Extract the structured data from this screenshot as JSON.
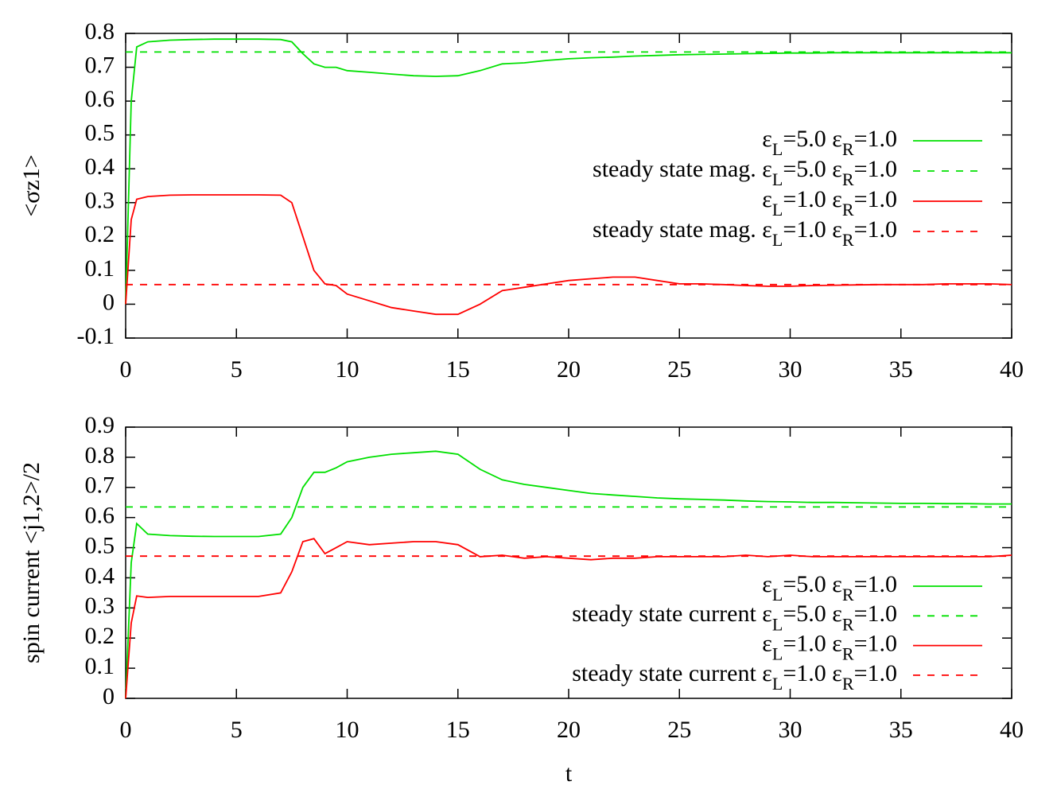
{
  "chart_data": [
    {
      "type": "line",
      "ylabel": "<σz1>",
      "x": [
        0,
        0.25,
        0.5,
        1,
        2,
        3,
        4,
        5,
        6,
        7,
        7.5,
        8,
        8.5,
        9,
        9.5,
        10,
        11,
        12,
        13,
        14,
        15,
        16,
        17,
        18,
        19,
        20,
        21,
        22,
        23,
        24,
        25,
        26,
        27,
        28,
        29,
        30,
        31,
        32,
        33,
        34,
        35,
        36,
        37,
        38,
        39,
        40
      ],
      "xlim": [
        0,
        40
      ],
      "xticks": [
        0,
        5,
        10,
        15,
        20,
        25,
        30,
        35,
        40
      ],
      "ylim": [
        -0.1,
        0.8
      ],
      "yticks": [
        -0.1,
        0,
        0.1,
        0.2,
        0.3,
        0.4,
        0.5,
        0.6,
        0.7,
        0.8
      ],
      "grid": false,
      "legend": "right",
      "series": [
        {
          "name": "εL=5.0 εR=1.0",
          "color": "#00e000",
          "dashed": false,
          "values": [
            0,
            0.6,
            0.76,
            0.775,
            0.78,
            0.782,
            0.783,
            0.783,
            0.783,
            0.782,
            0.775,
            0.74,
            0.71,
            0.7,
            0.7,
            0.69,
            0.685,
            0.68,
            0.675,
            0.673,
            0.675,
            0.69,
            0.71,
            0.713,
            0.72,
            0.725,
            0.728,
            0.73,
            0.733,
            0.735,
            0.737,
            0.738,
            0.739,
            0.74,
            0.741,
            0.742,
            0.742,
            0.743,
            0.743,
            0.743,
            0.743,
            0.743,
            0.743,
            0.743,
            0.743,
            0.743
          ]
        },
        {
          "name": "steady state mag. εL=5.0 εR=1.0",
          "color": "#00e000",
          "dashed": true,
          "x": [
            0,
            40
          ],
          "values": [
            0.745,
            0.745
          ]
        },
        {
          "name": "εL=1.0 εR=1.0",
          "color": "#ff0000",
          "dashed": false,
          "values": [
            0,
            0.25,
            0.31,
            0.318,
            0.322,
            0.323,
            0.323,
            0.323,
            0.323,
            0.322,
            0.3,
            0.2,
            0.1,
            0.06,
            0.055,
            0.03,
            0.01,
            -0.01,
            -0.02,
            -0.03,
            -0.03,
            0,
            0.04,
            0.05,
            0.06,
            0.07,
            0.075,
            0.08,
            0.08,
            0.07,
            0.06,
            0.06,
            0.058,
            0.055,
            0.053,
            0.053,
            0.055,
            0.056,
            0.057,
            0.058,
            0.058,
            0.058,
            0.06,
            0.06,
            0.06,
            0.058
          ]
        },
        {
          "name": "steady state mag. εL=1.0 εR=1.0",
          "color": "#ff0000",
          "dashed": true,
          "x": [
            0,
            40
          ],
          "values": [
            0.058,
            0.058
          ]
        }
      ]
    },
    {
      "type": "line",
      "ylabel": "spin current <j1,2>/2",
      "xlabel": "t",
      "x": [
        0,
        0.25,
        0.5,
        1,
        2,
        3,
        4,
        5,
        6,
        7,
        7.5,
        8,
        8.5,
        9,
        9.5,
        10,
        11,
        12,
        13,
        14,
        15,
        16,
        17,
        18,
        19,
        20,
        21,
        22,
        23,
        24,
        25,
        26,
        27,
        28,
        29,
        30,
        31,
        32,
        33,
        34,
        35,
        36,
        37,
        38,
        39,
        40
      ],
      "xlim": [
        0,
        40
      ],
      "xticks": [
        0,
        5,
        10,
        15,
        20,
        25,
        30,
        35,
        40
      ],
      "ylim": [
        0,
        0.9
      ],
      "yticks": [
        0,
        0.1,
        0.2,
        0.3,
        0.4,
        0.5,
        0.6,
        0.7,
        0.8,
        0.9
      ],
      "grid": false,
      "legend": "right",
      "series": [
        {
          "name": "εL=5.0 εR=1.0",
          "color": "#00e000",
          "dashed": false,
          "values": [
            0,
            0.45,
            0.58,
            0.545,
            0.54,
            0.538,
            0.537,
            0.537,
            0.537,
            0.545,
            0.6,
            0.7,
            0.75,
            0.75,
            0.765,
            0.785,
            0.8,
            0.81,
            0.815,
            0.82,
            0.81,
            0.76,
            0.725,
            0.71,
            0.7,
            0.69,
            0.68,
            0.675,
            0.67,
            0.665,
            0.662,
            0.66,
            0.658,
            0.655,
            0.653,
            0.652,
            0.65,
            0.65,
            0.649,
            0.648,
            0.647,
            0.647,
            0.646,
            0.646,
            0.645,
            0.645
          ]
        },
        {
          "name": "steady state current εL=5.0 εR=1.0",
          "color": "#00e000",
          "dashed": true,
          "x": [
            0,
            40
          ],
          "values": [
            0.635,
            0.635
          ]
        },
        {
          "name": "εL=1.0 εR=1.0",
          "color": "#ff0000",
          "dashed": false,
          "values": [
            0,
            0.25,
            0.34,
            0.335,
            0.338,
            0.338,
            0.338,
            0.338,
            0.338,
            0.35,
            0.42,
            0.52,
            0.53,
            0.48,
            0.5,
            0.52,
            0.51,
            0.515,
            0.52,
            0.52,
            0.51,
            0.47,
            0.475,
            0.465,
            0.47,
            0.465,
            0.46,
            0.465,
            0.465,
            0.47,
            0.47,
            0.47,
            0.47,
            0.475,
            0.47,
            0.475,
            0.47,
            0.47,
            0.47,
            0.47,
            0.47,
            0.47,
            0.47,
            0.47,
            0.47,
            0.475
          ]
        },
        {
          "name": "steady state current εL=1.0 εR=1.0",
          "color": "#ff0000",
          "dashed": true,
          "x": [
            0,
            40
          ],
          "values": [
            0.472,
            0.472
          ]
        }
      ]
    }
  ]
}
